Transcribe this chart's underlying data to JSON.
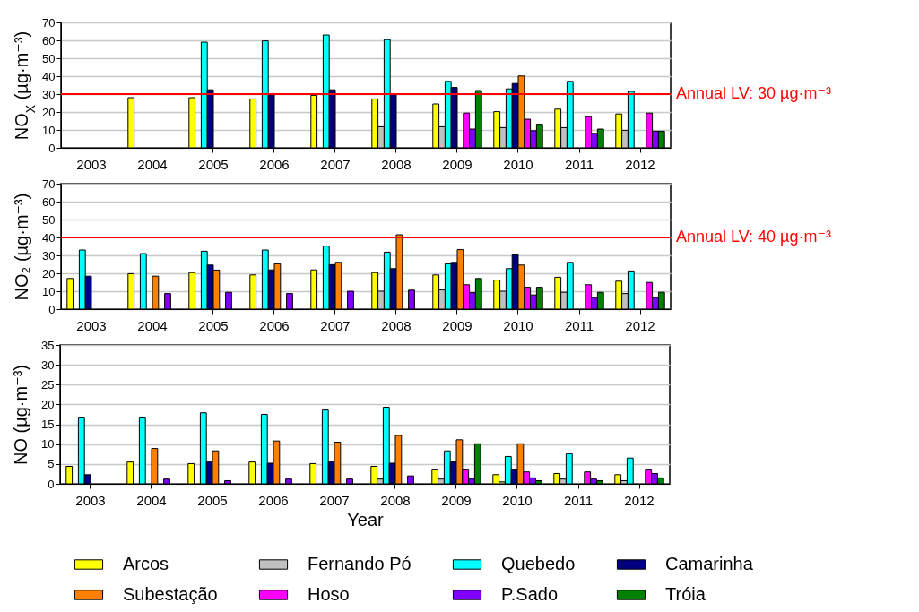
{
  "chart_data": [
    {
      "type": "bar",
      "ylabel": "NO$_{X}$ (µg·m⁻³)",
      "categories": [
        "2003",
        "2004",
        "2005",
        "2006",
        "2007",
        "2008",
        "2009",
        "2010",
        "2011",
        "2012"
      ],
      "ylim": [
        0,
        70
      ],
      "yticks": [
        0,
        10,
        20,
        30,
        40,
        50,
        60,
        70
      ],
      "grid": "y",
      "legend": false,
      "ref_lines": [
        {
          "axis": "y",
          "value": 30,
          "label": "Annual LV: 30 µg·m⁻³",
          "color": "#ff0000"
        }
      ],
      "series": [
        {
          "color": "#ffff00",
          "values": [
            null,
            28,
            28,
            27.3,
            29.3,
            27.3,
            24.5,
            20.2,
            21.6,
            18.9
          ]
        },
        {
          "color": "#c0c0c0",
          "values": [
            null,
            null,
            null,
            null,
            null,
            11.8,
            11.8,
            11.3,
            11.3,
            9.8
          ]
        },
        {
          "color": "#00ffff",
          "values": [
            null,
            null,
            59,
            59.7,
            63,
            60.4,
            37.1,
            32.9,
            37.1,
            31.5
          ]
        },
        {
          "color": "#000080",
          "values": [
            null,
            null,
            32.4,
            29.8,
            32.4,
            29.7,
            33.7,
            35.9,
            null,
            null
          ]
        },
        {
          "color": "#ff8000",
          "values": [
            null,
            null,
            null,
            null,
            null,
            null,
            null,
            40.1,
            null,
            null
          ]
        },
        {
          "color": "#ff00ff",
          "values": [
            null,
            null,
            null,
            null,
            null,
            null,
            19.4,
            16,
            17.4,
            19.4
          ]
        },
        {
          "color": "#8000ff",
          "values": [
            null,
            null,
            null,
            null,
            null,
            null,
            10.5,
            9.6,
            8.1,
            9.3
          ]
        },
        {
          "color": "#008000",
          "values": [
            null,
            null,
            null,
            null,
            null,
            null,
            32,
            13.2,
            10.5,
            9.3
          ]
        }
      ]
    },
    {
      "type": "bar",
      "ylabel": "NO₂ (µg·m⁻³)",
      "categories": [
        "2003",
        "2004",
        "2005",
        "2006",
        "2007",
        "2008",
        "2009",
        "2010",
        "2011",
        "2012"
      ],
      "ylim": [
        0,
        70
      ],
      "yticks": [
        0,
        10,
        20,
        30,
        40,
        50,
        60,
        70
      ],
      "grid": "y",
      "legend": false,
      "ref_lines": [
        {
          "axis": "y",
          "value": 40,
          "label": "Annual LV: 40 µg·m⁻³",
          "color": "#ff0000"
        }
      ],
      "series": [
        {
          "color": "#ffff00",
          "values": [
            17.1,
            19.8,
            20.4,
            19.1,
            21.9,
            20.4,
            19.1,
            16.2,
            17.8,
            15.6
          ]
        },
        {
          "color": "#c0c0c0",
          "values": [
            null,
            null,
            null,
            null,
            null,
            10,
            10.7,
            10,
            9.4,
            8.7
          ]
        },
        {
          "color": "#00ffff",
          "values": [
            33,
            31,
            32.3,
            33,
            35.2,
            31.8,
            25.3,
            22.6,
            26.1,
            21.3
          ]
        },
        {
          "color": "#000080",
          "values": [
            18.4,
            null,
            24.6,
            21.9,
            24.8,
            22.6,
            26.1,
            30.3,
            null,
            null
          ]
        },
        {
          "color": "#ff8000",
          "values": [
            null,
            18.4,
            21.8,
            25.3,
            26.1,
            41.5,
            33.2,
            24.6,
            null,
            null
          ]
        },
        {
          "color": "#ff00ff",
          "values": [
            null,
            null,
            null,
            null,
            null,
            null,
            13.6,
            12.2,
            13.6,
            14.9
          ]
        },
        {
          "color": "#8000ff",
          "values": [
            null,
            8.7,
            9.4,
            8.7,
            10,
            10.6,
            9.2,
            7.9,
            6.4,
            6.4
          ]
        },
        {
          "color": "#008000",
          "values": [
            null,
            null,
            null,
            null,
            null,
            null,
            17.1,
            12.2,
            9.4,
            9.4
          ]
        }
      ]
    },
    {
      "type": "bar",
      "ylabel": "NO (µg·m⁻³)",
      "xlabel": "Year",
      "categories": [
        "2003",
        "2004",
        "2005",
        "2006",
        "2007",
        "2008",
        "2009",
        "2010",
        "2011",
        "2012"
      ],
      "ylim": [
        0,
        35
      ],
      "yticks": [
        0,
        5,
        10,
        15,
        20,
        25,
        30,
        35
      ],
      "grid": "y",
      "legend": "bottom",
      "series": [
        {
          "name": "Arcos",
          "color": "#ffff00",
          "values": [
            4.4,
            5.5,
            5.1,
            5.5,
            5.1,
            4.4,
            3.7,
            2.3,
            2.6,
            2.3
          ]
        },
        {
          "name": "Fernando Pó",
          "color": "#c0c0c0",
          "values": [
            null,
            null,
            null,
            null,
            null,
            1.2,
            1.2,
            0.5,
            1.2,
            0.8
          ]
        },
        {
          "name": "Quebedo",
          "color": "#00ffff",
          "values": [
            16.8,
            16.8,
            17.9,
            17.5,
            18.6,
            19.3,
            8.3,
            6.9,
            7.6,
            6.5
          ]
        },
        {
          "name": "Camarinha",
          "color": "#000080",
          "values": [
            2.3,
            null,
            5.5,
            5.2,
            5.5,
            5.2,
            5.5,
            3.7,
            null,
            null
          ]
        },
        {
          "name": "Subestação",
          "color": "#ff8000",
          "values": [
            null,
            8.9,
            8.3,
            10.8,
            10.5,
            12.2,
            11.1,
            10.1,
            null,
            null
          ]
        },
        {
          "name": "Hoso",
          "color": "#ff00ff",
          "values": [
            null,
            null,
            null,
            null,
            null,
            null,
            3.7,
            3,
            3,
            3.7
          ]
        },
        {
          "name": "P.Sado",
          "color": "#8000ff",
          "values": [
            null,
            1.2,
            0.8,
            1.2,
            1.2,
            2,
            1.2,
            1.5,
            1.2,
            2.6
          ]
        },
        {
          "name": "Tróia",
          "color": "#008000",
          "values": [
            null,
            null,
            null,
            null,
            null,
            null,
            10.1,
            0.8,
            0.8,
            1.5
          ]
        }
      ]
    }
  ]
}
